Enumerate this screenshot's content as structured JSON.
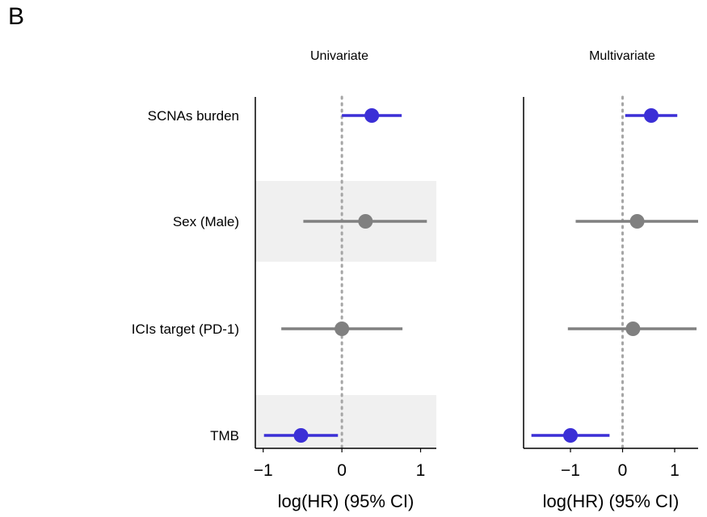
{
  "panel_letter": "B",
  "chart_data": [
    {
      "type": "forest",
      "title": "Univariate",
      "xlabel": "log(HR) (95% CI)",
      "xlim": [
        -1.1,
        1.2
      ],
      "xticks": [
        -1,
        0,
        1
      ],
      "xtick_labels": [
        "−1",
        "0",
        "1"
      ],
      "reference_line": 0,
      "rows": [
        {
          "label": "SCNAs burden",
          "estimate": 0.38,
          "ci_low": 0.0,
          "ci_high": 0.76,
          "color": "#3b2fd6"
        },
        {
          "label": "Sex (Male)",
          "estimate": 0.3,
          "ci_low": -0.49,
          "ci_high": 1.08,
          "color": "#808080"
        },
        {
          "label": "ICIs target (PD-1)",
          "estimate": 0.0,
          "ci_low": -0.77,
          "ci_high": 0.77,
          "color": "#808080"
        },
        {
          "label": "TMB",
          "estimate": -0.52,
          "ci_low": -0.99,
          "ci_high": -0.05,
          "color": "#3b2fd6"
        }
      ],
      "shaded_rows": [
        1,
        3
      ]
    },
    {
      "type": "forest",
      "title": "Multivariate",
      "xlabel": "log(HR) (95% CI)",
      "xlim": [
        -1.9,
        1.45
      ],
      "xticks": [
        -1,
        0,
        1
      ],
      "xtick_labels": [
        "−1",
        "0",
        "1"
      ],
      "reference_line": 0,
      "rows": [
        {
          "label": "SCNAs burden",
          "estimate": 0.55,
          "ci_low": 0.05,
          "ci_high": 1.05,
          "color": "#3b2fd6"
        },
        {
          "label": "Sex (Male)",
          "estimate": 0.28,
          "ci_low": -0.9,
          "ci_high": 1.45,
          "color": "#808080"
        },
        {
          "label": "ICIs target (PD-1)",
          "estimate": 0.2,
          "ci_low": -1.05,
          "ci_high": 1.42,
          "color": "#808080"
        },
        {
          "label": "TMB",
          "estimate": -1.0,
          "ci_low": -1.75,
          "ci_high": -0.25,
          "color": "#3b2fd6"
        }
      ],
      "shaded_rows": []
    }
  ],
  "colors": {
    "significant": "#3b2fd6",
    "nonsignificant": "#808080",
    "shade": "#f0f0f0",
    "reference_line": "#a6a6a6"
  }
}
